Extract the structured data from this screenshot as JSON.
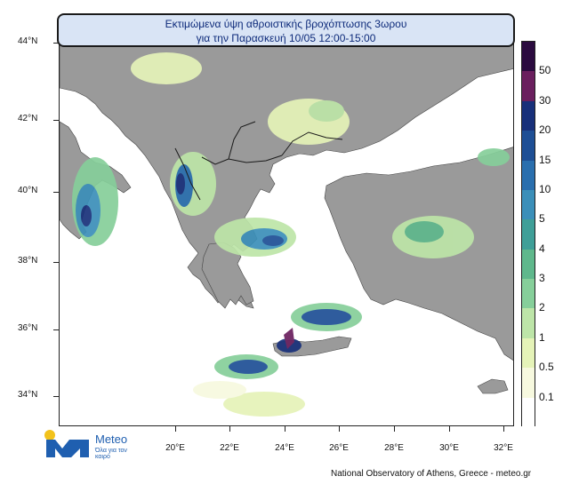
{
  "title": {
    "line1": "Εκτιμώμενα ύψη αθροιστικής βροχόπτωσης 3ωρου",
    "line2": "για την Παρασκευή 10/05 12:00-15:00"
  },
  "axes": {
    "lat_labels": [
      "44°N",
      "42°N",
      "40°N",
      "38°N",
      "36°N",
      "34°N"
    ],
    "lon_labels": [
      "20°E",
      "22°E",
      "24°E",
      "26°E",
      "28°E",
      "30°E",
      "32°E"
    ]
  },
  "colorbar": {
    "labels": [
      "50",
      "30",
      "20",
      "15",
      "10",
      "5",
      "4",
      "3",
      "2",
      "1",
      "0.5",
      "0.1"
    ],
    "colors": [
      "#2b0b3f",
      "#6a1f5e",
      "#18307a",
      "#1e4f95",
      "#2a6fae",
      "#3b8fb9",
      "#3f9f98",
      "#5fb88c",
      "#86cf9a",
      "#bde5a8",
      "#e5f3b8",
      "#f7f9df",
      "#ffffff"
    ]
  },
  "colors": {
    "land": "#9a9a9a",
    "sea": "#ffffff",
    "border": "#1a1a1a"
  },
  "logo": {
    "brand": "Meteo",
    "tagline": "Όλα για τον καιρό",
    "icon": "meteo-logo-icon"
  },
  "footer": "National Observatory of Athens, Greece - meteo.gr"
}
